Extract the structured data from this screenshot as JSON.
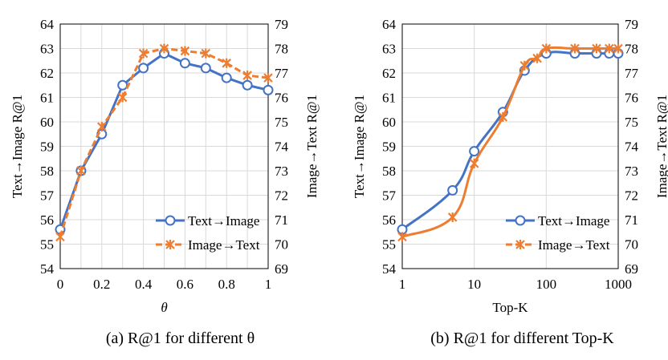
{
  "chart_data": [
    {
      "type": "line",
      "caption": "(a) R@1 for different θ",
      "xlabel": "θ",
      "ylabel": "Text→Image R@1",
      "y2label": "Image→Text R@1",
      "xlim": [
        0,
        1
      ],
      "ylim": [
        54,
        64
      ],
      "y2lim": [
        69,
        79
      ],
      "xticks": [
        "0",
        "0.2",
        "0.4",
        "0.6",
        "0.8",
        "1"
      ],
      "xtick_values": [
        0,
        0.2,
        0.4,
        0.6,
        0.8,
        1
      ],
      "yticks": [
        "54",
        "55",
        "56",
        "57",
        "58",
        "59",
        "60",
        "61",
        "62",
        "63",
        "64"
      ],
      "y2ticks": [
        "69",
        "70",
        "71",
        "72",
        "73",
        "74",
        "75",
        "76",
        "77",
        "78",
        "79"
      ],
      "grid": true,
      "legend": "bottom-right",
      "smooth": false,
      "x": [
        0,
        0.1,
        0.2,
        0.3,
        0.4,
        0.5,
        0.6,
        0.7,
        0.8,
        0.9,
        1
      ],
      "series": [
        {
          "name": "Text→Image",
          "axis": "left",
          "color": "#4472C4",
          "marker": "circle",
          "x": [
            0,
            0.1,
            0.2,
            0.3,
            0.4,
            0.5,
            0.6,
            0.7,
            0.8,
            0.9,
            1
          ],
          "values": [
            55.6,
            58.0,
            59.5,
            61.5,
            62.2,
            62.8,
            62.4,
            62.2,
            61.8,
            61.5,
            61.3
          ]
        },
        {
          "name": "Image→Text",
          "axis": "right",
          "color": "#ED7D31",
          "marker": "x",
          "x": [
            0,
            0.1,
            0.2,
            0.3,
            0.4,
            0.5,
            0.6,
            0.7,
            0.8,
            0.9,
            1
          ],
          "values": [
            70.3,
            73.0,
            74.8,
            76.0,
            77.8,
            78.0,
            77.9,
            77.8,
            77.4,
            76.9,
            76.8
          ]
        }
      ]
    },
    {
      "type": "line",
      "caption": "(b) R@1 for different Top-K",
      "xlabel": "Top-K",
      "ylabel": "Text→Image R@1",
      "y2label": "Image→Text R@1",
      "xscale": "log",
      "xlim": [
        1,
        1000
      ],
      "ylim": [
        54,
        64
      ],
      "y2lim": [
        69,
        79
      ],
      "xticks": [
        "1",
        "10",
        "100",
        "1000"
      ],
      "xtick_values": [
        1,
        10,
        100,
        1000
      ],
      "yticks": [
        "54",
        "55",
        "56",
        "57",
        "58",
        "59",
        "60",
        "61",
        "62",
        "63",
        "64"
      ],
      "y2ticks": [
        "69",
        "70",
        "71",
        "72",
        "73",
        "74",
        "75",
        "76",
        "77",
        "78",
        "79"
      ],
      "grid": true,
      "legend": "bottom-right",
      "smooth": true,
      "series": [
        {
          "name": "Text→Image",
          "axis": "left",
          "color": "#4472C4",
          "marker": "circle",
          "x": [
            1,
            5,
            10,
            25,
            50,
            100,
            250,
            500,
            750,
            1000
          ],
          "values": [
            55.6,
            57.2,
            58.8,
            60.4,
            62.1,
            62.8,
            62.8,
            62.8,
            62.8,
            62.8
          ]
        },
        {
          "name": "Image→Text",
          "axis": "right",
          "color": "#ED7D31",
          "marker": "x",
          "x": [
            1,
            5,
            10,
            25,
            50,
            75,
            100,
            250,
            500,
            750,
            1000
          ],
          "values": [
            70.3,
            71.1,
            73.3,
            75.2,
            77.3,
            77.6,
            78.0,
            78.0,
            78.0,
            78.0,
            78.0
          ]
        }
      ]
    }
  ]
}
